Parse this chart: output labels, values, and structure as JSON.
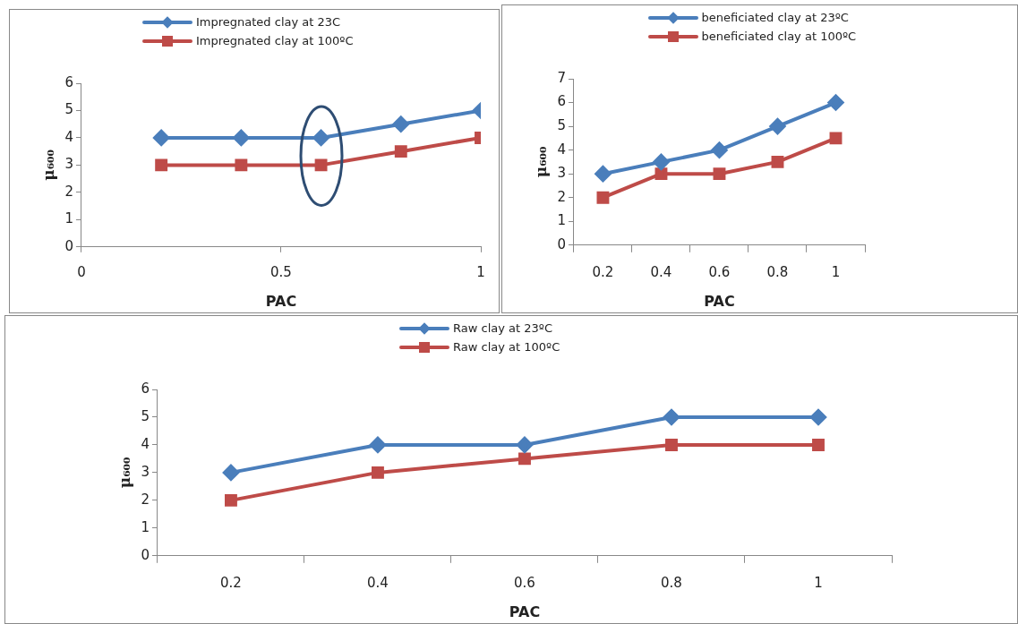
{
  "chart_data": [
    {
      "type": "line",
      "xlabel": "PAC",
      "ylabel": "μ₆₀₀",
      "x": [
        0.2,
        0.4,
        0.6,
        0.8,
        1
      ],
      "xlim": [
        0,
        1
      ],
      "xticks": [
        0,
        0.5,
        1
      ],
      "ylim": [
        0,
        6
      ],
      "yticks": [
        0,
        1,
        2,
        3,
        4,
        5,
        6
      ],
      "legend": "top",
      "series": [
        {
          "name": "Impregnated clay at 23C",
          "color": "#4a7ebb",
          "marker": "diamond",
          "values": [
            4,
            4,
            4,
            4.5,
            5
          ]
        },
        {
          "name": "Impregnated clay at 100ºC",
          "color": "#be4b48",
          "marker": "square",
          "values": [
            3,
            3,
            3,
            3.5,
            4
          ]
        }
      ]
    },
    {
      "type": "line",
      "xlabel": "PAC",
      "ylabel": "μ₆₀₀",
      "categories": [
        "0.2",
        "0.4",
        "0.6",
        "0.8",
        "1"
      ],
      "ylim": [
        0,
        7
      ],
      "yticks": [
        0,
        1,
        2,
        3,
        4,
        5,
        6,
        7
      ],
      "legend": "top",
      "series": [
        {
          "name": "beneficiated clay at 23ºC",
          "color": "#4a7ebb",
          "marker": "diamond",
          "values": [
            3,
            3.5,
            4,
            5,
            6
          ]
        },
        {
          "name": "beneficiated clay at 100ºC",
          "color": "#be4b48",
          "marker": "square",
          "values": [
            2,
            3,
            3,
            3.5,
            4.5
          ]
        }
      ]
    },
    {
      "type": "line",
      "xlabel": "PAC",
      "ylabel": "μ₆₀₀",
      "categories": [
        "0.2",
        "0.4",
        "0.6",
        "0.8",
        "1"
      ],
      "ylim": [
        0,
        6
      ],
      "yticks": [
        0,
        1,
        2,
        3,
        4,
        5,
        6
      ],
      "legend": "top",
      "series": [
        {
          "name": "Raw clay at 23ºC",
          "color": "#4a7ebb",
          "marker": "diamond",
          "values": [
            3,
            4,
            4,
            5,
            5
          ]
        },
        {
          "name": "Raw clay at 100ºC",
          "color": "#be4b48",
          "marker": "square",
          "values": [
            2,
            3,
            3.5,
            4,
            4
          ]
        }
      ]
    }
  ]
}
